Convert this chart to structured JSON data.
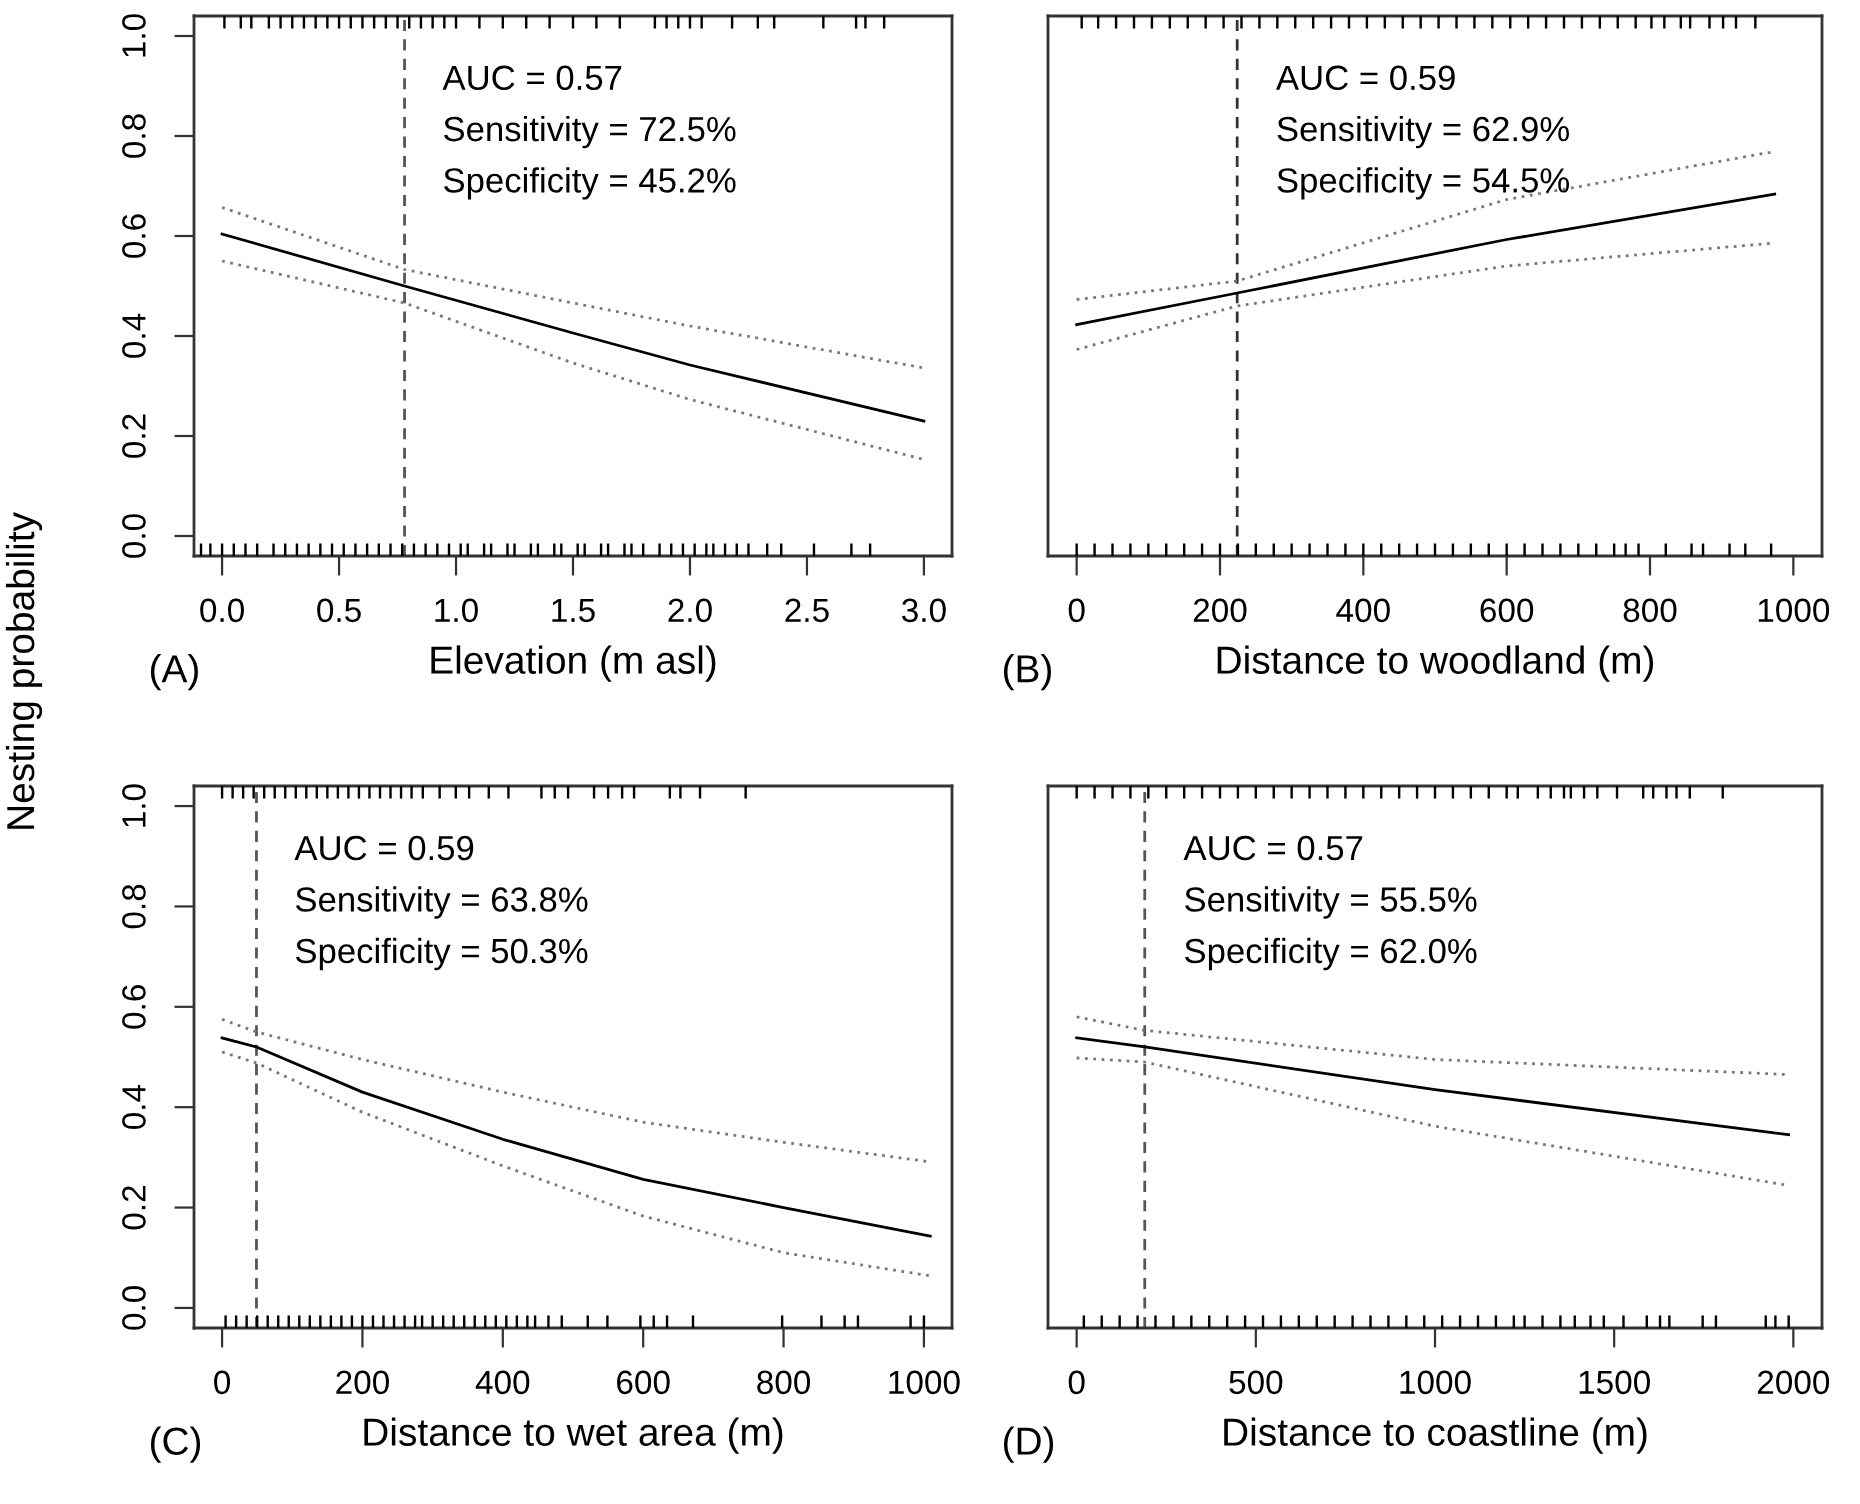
{
  "chart_data": [
    {
      "type": "line",
      "xlabel": "Elevation (m asl)",
      "ylabel": "Nesting probability",
      "annotations": [
        "(A)",
        "AUC = 0.57",
        "Sensitivity = 72.5%",
        "Specificity = 45.2%"
      ],
      "xlim": [
        -0.12,
        3.12
      ],
      "xticks": [
        {
          "value": 0,
          "label": "0.0"
        },
        {
          "value": 0.5,
          "label": "0.5"
        },
        {
          "value": 1,
          "label": "1.0"
        },
        {
          "value": 1.5,
          "label": "1.5"
        },
        {
          "value": 2,
          "label": "2.0"
        },
        {
          "value": 2.5,
          "label": "2.5"
        },
        {
          "value": 3,
          "label": "3.0"
        }
      ],
      "ylim": [
        -0.04,
        1.04
      ],
      "yticks": [
        {
          "value": 0,
          "label": "0.0"
        },
        {
          "value": 0.2,
          "label": "0.2"
        },
        {
          "value": 0.4,
          "label": "0.4"
        },
        {
          "value": 0.6,
          "label": "0.6"
        },
        {
          "value": 0.8,
          "label": "0.8"
        },
        {
          "value": 1,
          "label": "1.0"
        }
      ],
      "marker": "none",
      "ref_lines": [
        {
          "axis": "x",
          "value": 0.78,
          "color": "#555555",
          "line_style": "dashed"
        }
      ],
      "series": [
        {
          "x": [
            0,
            0.78,
            1.5,
            2.0,
            3.0
          ],
          "values": [
            0.604,
            0.5,
            0.406,
            0.342,
            0.23
          ],
          "color": "#000000",
          "line_style": "solid"
        },
        {
          "x": [
            0,
            0.78,
            1.5,
            2.0,
            3.0
          ],
          "values": [
            0.657,
            0.533,
            0.466,
            0.42,
            0.336
          ],
          "color": "#777777",
          "line_style": "dotted"
        },
        {
          "x": [
            0,
            0.78,
            1.5,
            2.0,
            3.0
          ],
          "values": [
            0.55,
            0.466,
            0.346,
            0.273,
            0.153
          ],
          "color": "#777777",
          "line_style": "dotted"
        },
        {
          "type": "bar",
          "color": "#000000",
          "x": [
            -0.09,
            -0.05,
            0.0,
            0.01,
            0.05,
            0.08,
            0.1,
            0.125,
            0.15,
            0.2,
            0.22,
            0.25,
            0.27,
            0.3,
            0.32,
            0.35,
            0.37,
            0.4,
            0.42,
            0.45,
            0.47,
            0.5,
            0.52,
            0.55,
            0.57,
            0.6,
            0.62,
            0.65,
            0.67,
            0.7,
            0.72,
            0.75,
            0.77,
            0.8,
            0.82,
            0.85,
            0.87,
            0.9,
            0.92,
            0.95,
            0.97,
            1.0,
            1.02,
            1.05,
            1.1,
            1.12,
            1.15,
            1.2,
            1.22,
            1.25,
            1.3,
            1.32,
            1.35,
            1.4,
            1.42,
            1.45,
            1.5,
            1.52,
            1.55,
            1.6,
            1.62,
            1.65,
            1.7,
            1.72,
            1.75,
            1.8,
            1.85,
            1.87,
            1.9,
            1.92,
            1.95,
            1.97,
            2.0,
            2.02,
            2.05,
            2.07,
            2.1,
            2.15,
            2.18,
            2.2,
            2.25,
            2.29,
            2.33,
            2.36,
            2.39,
            2.53,
            2.57,
            2.69,
            2.71,
            2.75,
            2.77,
            2.83
          ],
          "base": [
            -0.04,
            -0.04,
            -0.04,
            1.015,
            -0.04,
            1.015,
            -0.04,
            1.015,
            -0.04,
            1.015,
            -0.04,
            1.015,
            -0.04,
            1.015,
            -0.04,
            1.015,
            -0.04,
            1.015,
            -0.04,
            1.015,
            -0.04,
            1.015,
            -0.04,
            1.015,
            -0.04,
            1.015,
            -0.04,
            1.015,
            -0.04,
            1.015,
            -0.04,
            1.015,
            -0.04,
            1.015,
            -0.04,
            1.015,
            -0.04,
            1.015,
            -0.04,
            1.015,
            -0.04,
            1.015,
            -0.04,
            -0.04,
            1.015,
            -0.04,
            -0.04,
            1.015,
            -0.04,
            -0.04,
            1.015,
            -0.04,
            -0.04,
            1.015,
            -0.04,
            -0.04,
            1.015,
            -0.04,
            -0.04,
            1.015,
            -0.04,
            -0.04,
            1.015,
            -0.04,
            -0.04,
            -0.04,
            1.015,
            -0.04,
            1.015,
            -0.04,
            1.015,
            -0.04,
            1.015,
            -0.04,
            1.015,
            -0.04,
            -0.04,
            -0.04,
            1.015,
            -0.04,
            -0.04,
            1.015,
            -0.04,
            1.015,
            -0.04,
            -0.04,
            1.015,
            -0.04,
            1.015,
            1.015,
            -0.04,
            1.015
          ],
          "values": [
            0.025,
            0.025,
            0.025,
            0.025,
            0.025,
            0.025,
            0.025,
            0.025,
            0.025,
            0.025,
            0.025,
            0.025,
            0.025,
            0.025,
            0.025,
            0.025,
            0.025,
            0.025,
            0.025,
            0.025,
            0.025,
            0.025,
            0.025,
            0.025,
            0.025,
            0.025,
            0.025,
            0.025,
            0.025,
            0.025,
            0.025,
            0.025,
            0.025,
            0.025,
            0.025,
            0.025,
            0.025,
            0.025,
            0.025,
            0.025,
            0.025,
            0.025,
            0.025,
            0.025,
            0.025,
            0.025,
            0.025,
            0.025,
            0.025,
            0.025,
            0.025,
            0.025,
            0.025,
            0.025,
            0.025,
            0.025,
            0.025,
            0.025,
            0.025,
            0.025,
            0.025,
            0.025,
            0.025,
            0.025,
            0.025,
            0.025,
            0.025,
            0.025,
            0.025,
            0.025,
            0.025,
            0.025,
            0.025,
            0.025,
            0.025,
            0.025,
            0.025,
            0.025,
            0.025,
            0.025,
            0.025,
            0.025,
            0.025,
            0.025,
            0.025,
            0.025,
            0.025,
            0.025,
            0.025,
            0.025,
            0.025,
            0.025
          ]
        }
      ]
    },
    {
      "type": "line",
      "xlabel": "Distance to woodland (m)",
      "annotations": [
        "(B)",
        "AUC = 0.59",
        "Sensitivity = 62.9%",
        "Specificity = 54.5%"
      ],
      "xlim": [
        -40,
        1040
      ],
      "xticks": [
        0,
        200,
        400,
        600,
        800,
        1000
      ],
      "ylim": [
        -0.04,
        1.04
      ],
      "tick_labels": "x",
      "marker": "none",
      "ref_lines": [
        {
          "axis": "x",
          "value": 224,
          "color": "#333333",
          "line_style": "dashed"
        }
      ],
      "series": [
        {
          "x": [
            0,
            224,
            600,
            974
          ],
          "values": [
            0.423,
            0.486,
            0.593,
            0.684
          ],
          "color": "#000000",
          "line_style": "solid"
        },
        {
          "x": [
            0,
            224,
            600,
            974
          ],
          "values": [
            0.473,
            0.51,
            0.673,
            0.769
          ],
          "color": "#777777",
          "line_style": "dotted"
        },
        {
          "x": [
            0,
            224,
            600,
            974
          ],
          "values": [
            0.373,
            0.46,
            0.54,
            0.586
          ],
          "color": "#777777",
          "line_style": "dotted"
        },
        {
          "type": "bar",
          "color": "#000000",
          "x": [
            0,
            7,
            25,
            30,
            50,
            55,
            75,
            80,
            100,
            105,
            125,
            130,
            150,
            155,
            175,
            180,
            200,
            205,
            225,
            230,
            250,
            255,
            275,
            280,
            300,
            305,
            325,
            330,
            350,
            355,
            375,
            380,
            400,
            405,
            425,
            430,
            450,
            455,
            475,
            480,
            500,
            505,
            525,
            530,
            550,
            555,
            575,
            580,
            600,
            605,
            625,
            630,
            650,
            655,
            675,
            680,
            700,
            705,
            725,
            730,
            750,
            755,
            766,
            780,
            784,
            802,
            820,
            822,
            843,
            856,
            858,
            874,
            883,
            902,
            911,
            920,
            933,
            947,
            969
          ],
          "base": [
            -0.04,
            1.015,
            -0.04,
            1.015,
            -0.04,
            1.015,
            -0.04,
            1.015,
            -0.04,
            1.015,
            -0.04,
            1.015,
            -0.04,
            1.015,
            -0.04,
            1.015,
            -0.04,
            1.015,
            -0.04,
            1.015,
            -0.04,
            1.015,
            -0.04,
            1.015,
            -0.04,
            1.015,
            -0.04,
            1.015,
            -0.04,
            1.015,
            -0.04,
            1.015,
            -0.04,
            1.015,
            -0.04,
            1.015,
            -0.04,
            1.015,
            -0.04,
            1.015,
            -0.04,
            1.015,
            -0.04,
            1.015,
            -0.04,
            1.015,
            -0.04,
            1.015,
            -0.04,
            1.015,
            -0.04,
            1.015,
            -0.04,
            1.015,
            -0.04,
            1.015,
            -0.04,
            1.015,
            -0.04,
            1.015,
            -0.04,
            1.015,
            -0.04,
            1.015,
            -0.04,
            1.015,
            1.015,
            -0.04,
            1.015,
            1.015,
            -0.04,
            -0.04,
            1.015,
            1.015,
            -0.04,
            1.015,
            -0.04,
            1.015,
            -0.04
          ],
          "values": [
            0.025,
            0.025,
            0.025,
            0.025,
            0.025,
            0.025,
            0.025,
            0.025,
            0.025,
            0.025,
            0.025,
            0.025,
            0.025,
            0.025,
            0.025,
            0.025,
            0.025,
            0.025,
            0.025,
            0.025,
            0.025,
            0.025,
            0.025,
            0.025,
            0.025,
            0.025,
            0.025,
            0.025,
            0.025,
            0.025,
            0.025,
            0.025,
            0.025,
            0.025,
            0.025,
            0.025,
            0.025,
            0.025,
            0.025,
            0.025,
            0.025,
            0.025,
            0.025,
            0.025,
            0.025,
            0.025,
            0.025,
            0.025,
            0.025,
            0.025,
            0.025,
            0.025,
            0.025,
            0.025,
            0.025,
            0.025,
            0.025,
            0.025,
            0.025,
            0.025,
            0.025,
            0.025,
            0.025,
            0.025,
            0.025,
            0.025,
            0.025,
            0.025,
            0.025,
            0.025,
            0.025,
            0.025,
            0.025,
            0.025,
            0.025,
            0.025,
            0.025,
            0.025,
            0.025
          ]
        }
      ]
    },
    {
      "type": "line",
      "xlabel": "Distance to wet area (m)",
      "annotations": [
        "(C)",
        "AUC = 0.59",
        "Sensitivity = 63.8%",
        "Specificity = 50.3%"
      ],
      "xlim": [
        -40,
        1040
      ],
      "xticks": [
        0,
        200,
        400,
        600,
        800,
        1000
      ],
      "ylim": [
        -0.04,
        1.04
      ],
      "yticks": [
        {
          "value": 0,
          "label": "0.0"
        },
        {
          "value": 0.2,
          "label": "0.2"
        },
        {
          "value": 0.4,
          "label": "0.4"
        },
        {
          "value": 0.6,
          "label": "0.6"
        },
        {
          "value": 0.8,
          "label": "0.8"
        },
        {
          "value": 1,
          "label": "1.0"
        }
      ],
      "marker": "none",
      "ref_lines": [
        {
          "axis": "x",
          "value": 49,
          "color": "#555555",
          "line_style": "dashed"
        }
      ],
      "series": [
        {
          "x": [
            0,
            49,
            200,
            400,
            600,
            800,
            1009
          ],
          "values": [
            0.538,
            0.52,
            0.43,
            0.336,
            0.256,
            0.2,
            0.143
          ],
          "color": "#000000",
          "line_style": "solid"
        },
        {
          "x": [
            0,
            49,
            200,
            400,
            600,
            800,
            1009
          ],
          "values": [
            0.575,
            0.55,
            0.495,
            0.43,
            0.37,
            0.33,
            0.291
          ],
          "color": "#777777",
          "line_style": "dotted"
        },
        {
          "x": [
            0,
            49,
            200,
            400,
            600,
            800,
            1009
          ],
          "values": [
            0.51,
            0.488,
            0.39,
            0.283,
            0.183,
            0.11,
            0.064
          ],
          "color": "#777777",
          "line_style": "dotted"
        },
        {
          "type": "bar",
          "color": "#000000",
          "x": [
            0,
            5,
            15,
            20,
            30,
            35,
            45,
            50,
            60,
            65,
            75,
            80,
            90,
            95,
            105,
            110,
            120,
            125,
            135,
            140,
            150,
            155,
            165,
            170,
            180,
            185,
            195,
            200,
            210,
            215,
            225,
            230,
            240,
            245,
            255,
            260,
            270,
            275,
            285,
            286,
            300,
            310,
            315,
            330,
            333,
            345,
            352,
            360,
            375,
            380,
            390,
            405,
            408,
            420,
            435,
            446,
            455,
            465,
            474,
            484,
            493,
            521,
            530,
            549,
            550,
            570,
            587,
            596,
            615,
            634,
            638,
            653,
            671,
            681,
            746,
            798,
            854,
            887,
            906,
            981,
            1000
          ],
          "base": [
            1.015,
            -0.04,
            1.015,
            -0.04,
            1.015,
            -0.04,
            1.015,
            -0.04,
            1.015,
            -0.04,
            1.015,
            -0.04,
            1.015,
            -0.04,
            1.015,
            -0.04,
            1.015,
            -0.04,
            1.015,
            -0.04,
            1.015,
            -0.04,
            1.015,
            -0.04,
            1.015,
            -0.04,
            1.015,
            -0.04,
            1.015,
            -0.04,
            1.015,
            -0.04,
            1.015,
            -0.04,
            1.015,
            -0.04,
            1.015,
            -0.04,
            -0.04,
            1.015,
            -0.04,
            1.015,
            -0.04,
            -0.04,
            1.015,
            -0.04,
            1.015,
            -0.04,
            -0.04,
            1.015,
            -0.04,
            -0.04,
            1.015,
            -0.04,
            -0.04,
            -0.04,
            1.015,
            -0.04,
            1.015,
            -0.04,
            1.015,
            -0.04,
            1.015,
            -0.04,
            1.015,
            1.015,
            1.015,
            -0.04,
            -0.04,
            -0.04,
            1.015,
            1.015,
            -0.04,
            1.015,
            1.015,
            -0.04,
            -0.04,
            -0.04,
            -0.04,
            -0.04,
            -0.04
          ],
          "values": [
            0.025,
            0.025,
            0.025,
            0.025,
            0.025,
            0.025,
            0.025,
            0.025,
            0.025,
            0.025,
            0.025,
            0.025,
            0.025,
            0.025,
            0.025,
            0.025,
            0.025,
            0.025,
            0.025,
            0.025,
            0.025,
            0.025,
            0.025,
            0.025,
            0.025,
            0.025,
            0.025,
            0.025,
            0.025,
            0.025,
            0.025,
            0.025,
            0.025,
            0.025,
            0.025,
            0.025,
            0.025,
            0.025,
            0.025,
            0.025,
            0.025,
            0.025,
            0.025,
            0.025,
            0.025,
            0.025,
            0.025,
            0.025,
            0.025,
            0.025,
            0.025,
            0.025,
            0.025,
            0.025,
            0.025,
            0.025,
            0.025,
            0.025,
            0.025,
            0.025,
            0.025,
            0.025,
            0.025,
            0.025,
            0.025,
            0.025,
            0.025,
            0.025,
            0.025,
            0.025,
            0.025,
            0.025,
            0.025,
            0.025,
            0.025,
            0.025,
            0.025,
            0.025,
            0.025,
            0.025,
            0.025
          ]
        }
      ]
    },
    {
      "type": "line",
      "xlabel": "Distance to coastline (m)",
      "annotations": [
        "(D)",
        "AUC = 0.57",
        "Sensitivity = 55.5%",
        "Specificity = 62.0%"
      ],
      "xlim": [
        -80,
        2080
      ],
      "xticks": [
        0,
        500,
        1000,
        1500,
        2000
      ],
      "ylim": [
        -0.04,
        1.04
      ],
      "tick_labels": "x",
      "marker": "none",
      "ref_lines": [
        {
          "axis": "x",
          "value": 190,
          "color": "#555555",
          "line_style": "dashed"
        }
      ],
      "series": [
        {
          "x": [
            0,
            190,
            1000,
            1987
          ],
          "values": [
            0.538,
            0.52,
            0.435,
            0.345
          ],
          "color": "#000000",
          "line_style": "solid"
        },
        {
          "x": [
            0,
            190,
            1000,
            1987
          ],
          "values": [
            0.58,
            0.553,
            0.495,
            0.465
          ],
          "color": "#777777",
          "line_style": "dotted"
        },
        {
          "x": [
            0,
            190,
            1000,
            1987
          ],
          "values": [
            0.498,
            0.49,
            0.362,
            0.244
          ],
          "color": "#777777",
          "line_style": "dotted"
        },
        {
          "type": "bar",
          "color": "#000000",
          "x": [
            0,
            20,
            50,
            70,
            100,
            120,
            150,
            170,
            200,
            220,
            250,
            270,
            300,
            320,
            350,
            370,
            400,
            420,
            450,
            470,
            500,
            520,
            550,
            570,
            600,
            620,
            650,
            670,
            700,
            720,
            750,
            770,
            800,
            820,
            850,
            870,
            900,
            920,
            950,
            970,
            1000,
            1020,
            1050,
            1070,
            1100,
            1120,
            1150,
            1170,
            1200,
            1220,
            1231,
            1250,
            1287,
            1300,
            1323,
            1350,
            1360,
            1379,
            1390,
            1416,
            1434,
            1453,
            1471,
            1508,
            1526,
            1581,
            1591,
            1609,
            1628,
            1646,
            1654,
            1674,
            1711,
            1747,
            1784,
            1803,
            1923,
            1950,
            1987
          ],
          "base": [
            1.015,
            -0.04,
            1.015,
            -0.04,
            1.015,
            -0.04,
            1.015,
            -0.04,
            1.015,
            -0.04,
            1.015,
            -0.04,
            1.015,
            -0.04,
            1.015,
            -0.04,
            1.015,
            -0.04,
            1.015,
            -0.04,
            1.015,
            -0.04,
            1.015,
            -0.04,
            1.015,
            -0.04,
            1.015,
            -0.04,
            1.015,
            -0.04,
            1.015,
            -0.04,
            1.015,
            -0.04,
            1.015,
            -0.04,
            1.015,
            -0.04,
            1.015,
            -0.04,
            1.015,
            -0.04,
            1.015,
            -0.04,
            1.015,
            -0.04,
            1.015,
            -0.04,
            1.015,
            -0.04,
            1.015,
            -0.04,
            1.015,
            -0.04,
            1.015,
            -0.04,
            1.015,
            1.015,
            -0.04,
            1.015,
            -0.04,
            1.015,
            -0.04,
            1.015,
            -0.04,
            1.015,
            -0.04,
            1.015,
            -0.04,
            1.015,
            -0.04,
            1.015,
            1.015,
            -0.04,
            -0.04,
            1.015,
            -0.04,
            -0.04,
            -0.04
          ],
          "values": [
            0.025,
            0.025,
            0.025,
            0.025,
            0.025,
            0.025,
            0.025,
            0.025,
            0.025,
            0.025,
            0.025,
            0.025,
            0.025,
            0.025,
            0.025,
            0.025,
            0.025,
            0.025,
            0.025,
            0.025,
            0.025,
            0.025,
            0.025,
            0.025,
            0.025,
            0.025,
            0.025,
            0.025,
            0.025,
            0.025,
            0.025,
            0.025,
            0.025,
            0.025,
            0.025,
            0.025,
            0.025,
            0.025,
            0.025,
            0.025,
            0.025,
            0.025,
            0.025,
            0.025,
            0.025,
            0.025,
            0.025,
            0.025,
            0.025,
            0.025,
            0.025,
            0.025,
            0.025,
            0.025,
            0.025,
            0.025,
            0.025,
            0.025,
            0.025,
            0.025,
            0.025,
            0.025,
            0.025,
            0.025,
            0.025,
            0.025,
            0.025,
            0.025,
            0.025,
            0.025,
            0.025,
            0.025,
            0.025,
            0.025,
            0.025,
            0.025,
            0.025,
            0.025,
            0.025
          ]
        }
      ]
    }
  ]
}
